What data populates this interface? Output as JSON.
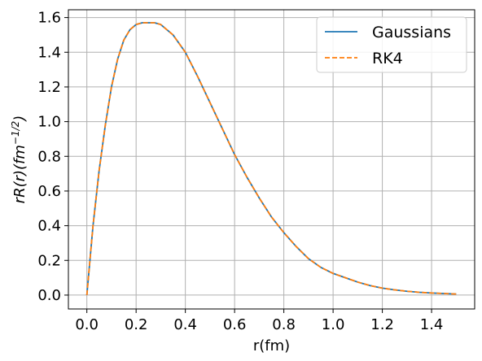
{
  "chart_data": {
    "type": "line",
    "title": "",
    "xlabel": "r(fm)",
    "ylabel": {
      "base": "rR(r)(fm",
      "superscript": "−1/2",
      "close": ")"
    },
    "xlim": [
      -0.075,
      1.575
    ],
    "ylim": [
      -0.08,
      1.645
    ],
    "xticks": [
      0.0,
      0.2,
      0.4,
      0.6,
      0.8,
      1.0,
      1.2,
      1.4
    ],
    "xtick_labels": [
      "0.0",
      "0.2",
      "0.4",
      "0.6",
      "0.8",
      "1.0",
      "1.2",
      "1.4"
    ],
    "yticks": [
      0.0,
      0.2,
      0.4,
      0.6,
      0.8,
      1.0,
      1.2,
      1.4,
      1.6
    ],
    "ytick_labels": [
      "0.0",
      "0.2",
      "0.4",
      "0.6",
      "0.8",
      "1.0",
      "1.2",
      "1.4",
      "1.6"
    ],
    "grid": true,
    "legend_position": "top-right",
    "x": [
      0.0,
      0.025,
      0.05,
      0.075,
      0.1,
      0.125,
      0.15,
      0.175,
      0.2,
      0.225,
      0.25,
      0.275,
      0.3,
      0.325,
      0.35,
      0.4,
      0.45,
      0.5,
      0.55,
      0.6,
      0.65,
      0.7,
      0.75,
      0.8,
      0.85,
      0.9,
      0.95,
      1.0,
      1.05,
      1.1,
      1.15,
      1.2,
      1.25,
      1.3,
      1.35,
      1.4,
      1.45,
      1.5
    ],
    "series": [
      {
        "name": "Gaussians",
        "color": "#1f77b4",
        "dash": "solid",
        "values": [
          0.0,
          0.4,
          0.72,
          0.98,
          1.2,
          1.36,
          1.47,
          1.53,
          1.56,
          1.57,
          1.57,
          1.57,
          1.56,
          1.53,
          1.5,
          1.4,
          1.26,
          1.11,
          0.96,
          0.81,
          0.68,
          0.56,
          0.45,
          0.36,
          0.28,
          0.21,
          0.16,
          0.125,
          0.1,
          0.075,
          0.055,
          0.04,
          0.03,
          0.022,
          0.016,
          0.012,
          0.009,
          0.006
        ]
      },
      {
        "name": "RK4",
        "color": "#ff7f0e",
        "dash": "dashed",
        "values": [
          0.0,
          0.4,
          0.72,
          0.98,
          1.2,
          1.36,
          1.47,
          1.53,
          1.56,
          1.57,
          1.57,
          1.57,
          1.56,
          1.53,
          1.5,
          1.4,
          1.26,
          1.11,
          0.96,
          0.81,
          0.68,
          0.56,
          0.45,
          0.36,
          0.28,
          0.21,
          0.16,
          0.125,
          0.1,
          0.075,
          0.055,
          0.04,
          0.03,
          0.022,
          0.016,
          0.012,
          0.009,
          0.006
        ]
      }
    ]
  }
}
